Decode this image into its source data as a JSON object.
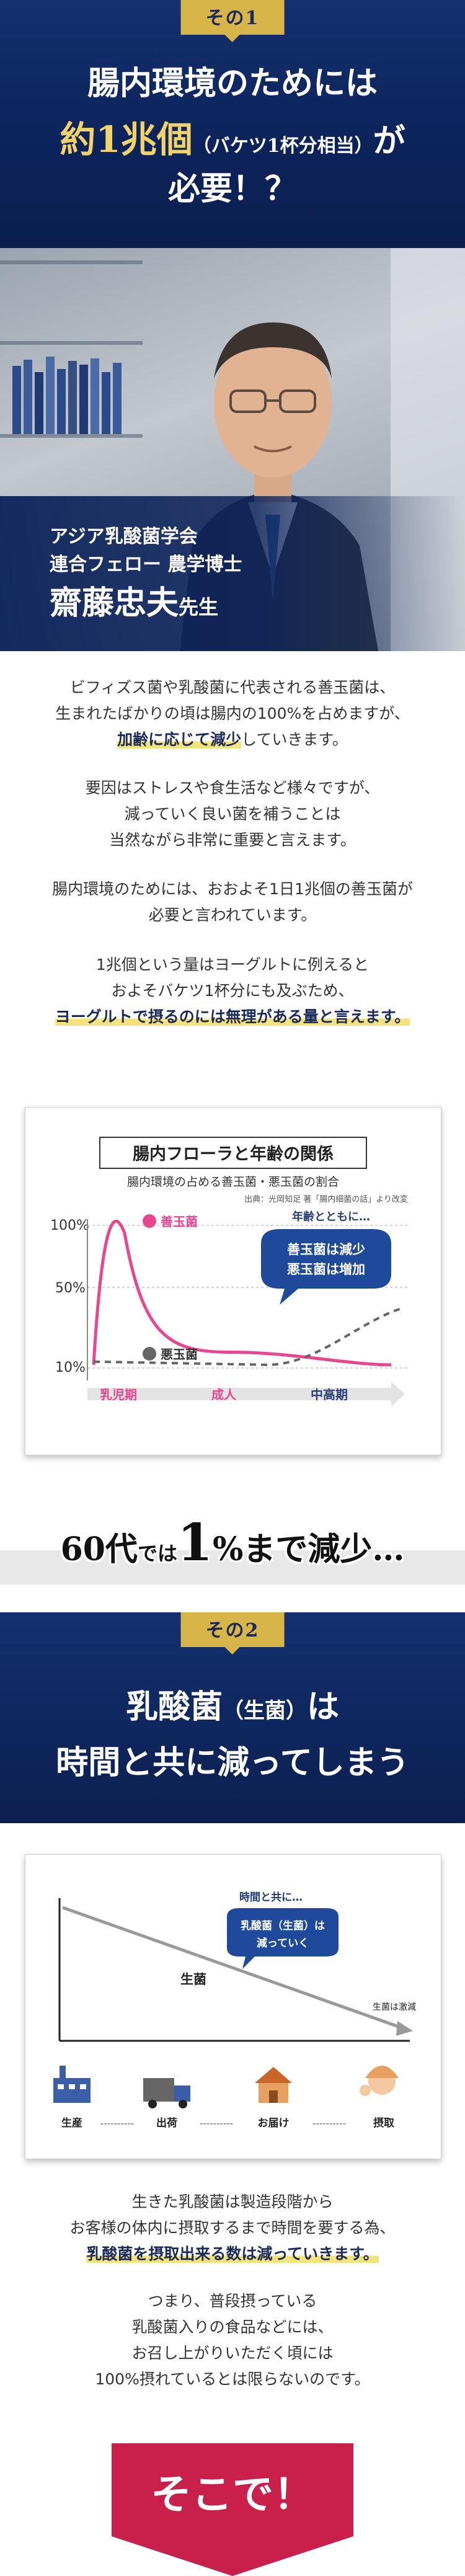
{
  "section1": {
    "tab": "その1",
    "headline_line1": "腸内環境のためには",
    "headline_big": "約1兆個",
    "headline_paren": "（バケツ1杯分相当）",
    "headline_ga": "が",
    "headline_line3": "必要！？"
  },
  "profile": {
    "line1": "アジア乳酸菌学会",
    "line2": "連合フェロー 農学博士",
    "name": "齋藤忠夫",
    "honorific": "先生"
  },
  "paragraphs1": [
    "ビフィズス菌や乳酸菌に代表される善玉菌は、",
    "生まれたばかりの頃は腸内の100%を占めますが、",
    "加齢に応じて減少",
    "していきます。",
    "要因はストレスや食生活など様々ですが、",
    "減っていく良い菌を補うことは",
    "当然ながら非常に重要と言えます。",
    "腸内環境のためには、おおよそ1日1兆個の善玉菌が",
    "必要と言われています。",
    "1兆個という量はヨーグルトに例えると",
    "およそバケツ1杯分にも及ぶため、",
    "ヨーグルトで摂るのには無理がある量と言えます。"
  ],
  "chart1": {
    "title": "腸内フローラと年齢の関係",
    "subtitle": "腸内環境の占める善玉菌・悪玉菌の割合",
    "source": "出典：光岡知足 著「腸内細菌の話」より改変",
    "yticks": [
      "100%",
      "50%",
      "10%"
    ],
    "good_label": "善玉菌",
    "bad_label": "悪玉菌",
    "age_note": "年齢とともに…",
    "bubble1": "善玉菌は減少",
    "bubble2": "悪玉菌は増加",
    "stages": [
      "乳児期",
      "成人",
      "中高期"
    ]
  },
  "chart_data": {
    "type": "line",
    "x": [
      "乳児期",
      "成人",
      "中高期"
    ],
    "series": [
      {
        "name": "善玉菌",
        "values": [
          95,
          20,
          12
        ]
      },
      {
        "name": "悪玉菌",
        "values": [
          14,
          12,
          40
        ]
      }
    ],
    "ylim": [
      0,
      100
    ]
  },
  "banner": {
    "p1": "60代",
    "p2": "では",
    "p3": "1",
    "p4": "%まで減少…"
  },
  "section2": {
    "tab": "その2",
    "line1a": "乳酸菌",
    "line1b": "（生菌）",
    "line1c": "は",
    "line2": "時間と共に減ってしまう"
  },
  "chart2": {
    "note": "時間と共に…",
    "bubble1": "乳酸菌（生菌）は",
    "bubble2": "減っていく",
    "line_label": "生菌",
    "end_label": "生菌は激減",
    "steps": [
      "生産",
      "出荷",
      "お届け",
      "摂取"
    ],
    "dashes": "----------"
  },
  "paragraphs2": [
    "生きた乳酸菌は製造段階から",
    "お客様の体内に摂取するまで時間を要する為、",
    "乳酸菌を摂取出来る数は減っていきます。",
    "つまり、普段摂っている",
    "乳酸菌入りの食品などには、",
    "お召し上がりいただく頃には",
    "100%摂れているとは限らないのです。"
  ],
  "cta": "そこで！",
  "colors": {
    "navy": "#0c235a",
    "gold": "#d8b548",
    "pink": "#e8468f",
    "red": "#c8204a"
  }
}
